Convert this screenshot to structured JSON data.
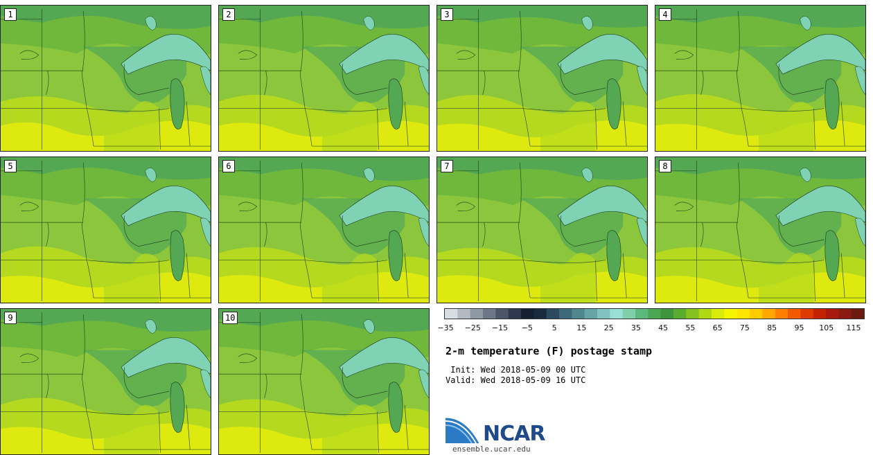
{
  "panels": [
    {
      "label": "1"
    },
    {
      "label": "2"
    },
    {
      "label": "3"
    },
    {
      "label": "4"
    },
    {
      "label": "5"
    },
    {
      "label": "6"
    },
    {
      "label": "7"
    },
    {
      "label": "8"
    },
    {
      "label": "9"
    },
    {
      "label": "10"
    }
  ],
  "map_colors": {
    "cool_green": "#54a854",
    "mid_green": "#6fb83c",
    "light_green": "#8cc63c",
    "yellow_green": "#b4d91e",
    "yellow": "#dde90f",
    "lake": "#7fd3b4",
    "border": "#1a3a1a"
  },
  "colorbar": {
    "colors": [
      "#d8dde3",
      "#b3bac3",
      "#8f98a5",
      "#6d7788",
      "#4b566b",
      "#2e394f",
      "#171f33",
      "#1a2a3e",
      "#2b4a5f",
      "#3c6879",
      "#4f8690",
      "#66a4a7",
      "#82c2bf",
      "#9adfd6",
      "#7fcfa8",
      "#5cb97e",
      "#4aa653",
      "#3e953b",
      "#5aac2e",
      "#86c21f",
      "#b0d813",
      "#d9eb0a",
      "#f6f500",
      "#ffe600",
      "#ffcc00",
      "#ffa800",
      "#ff8000",
      "#f25a00",
      "#dd3b00",
      "#c42300",
      "#a81a0e",
      "#8b1a10",
      "#6c1a0f"
    ],
    "ticks": [
      "−35",
      "−25",
      "−15",
      "−5",
      "5",
      "15",
      "25",
      "35",
      "45",
      "55",
      "65",
      "75",
      "85",
      "95",
      "105",
      "115"
    ]
  },
  "title": "2-m temperature (F) postage stamp",
  "init_line": " Init: Wed 2018-05-09 00 UTC",
  "valid_line": "Valid: Wed 2018-05-09 16 UTC",
  "logo": {
    "text": "NCAR",
    "url": "ensemble.ucar.edu"
  }
}
